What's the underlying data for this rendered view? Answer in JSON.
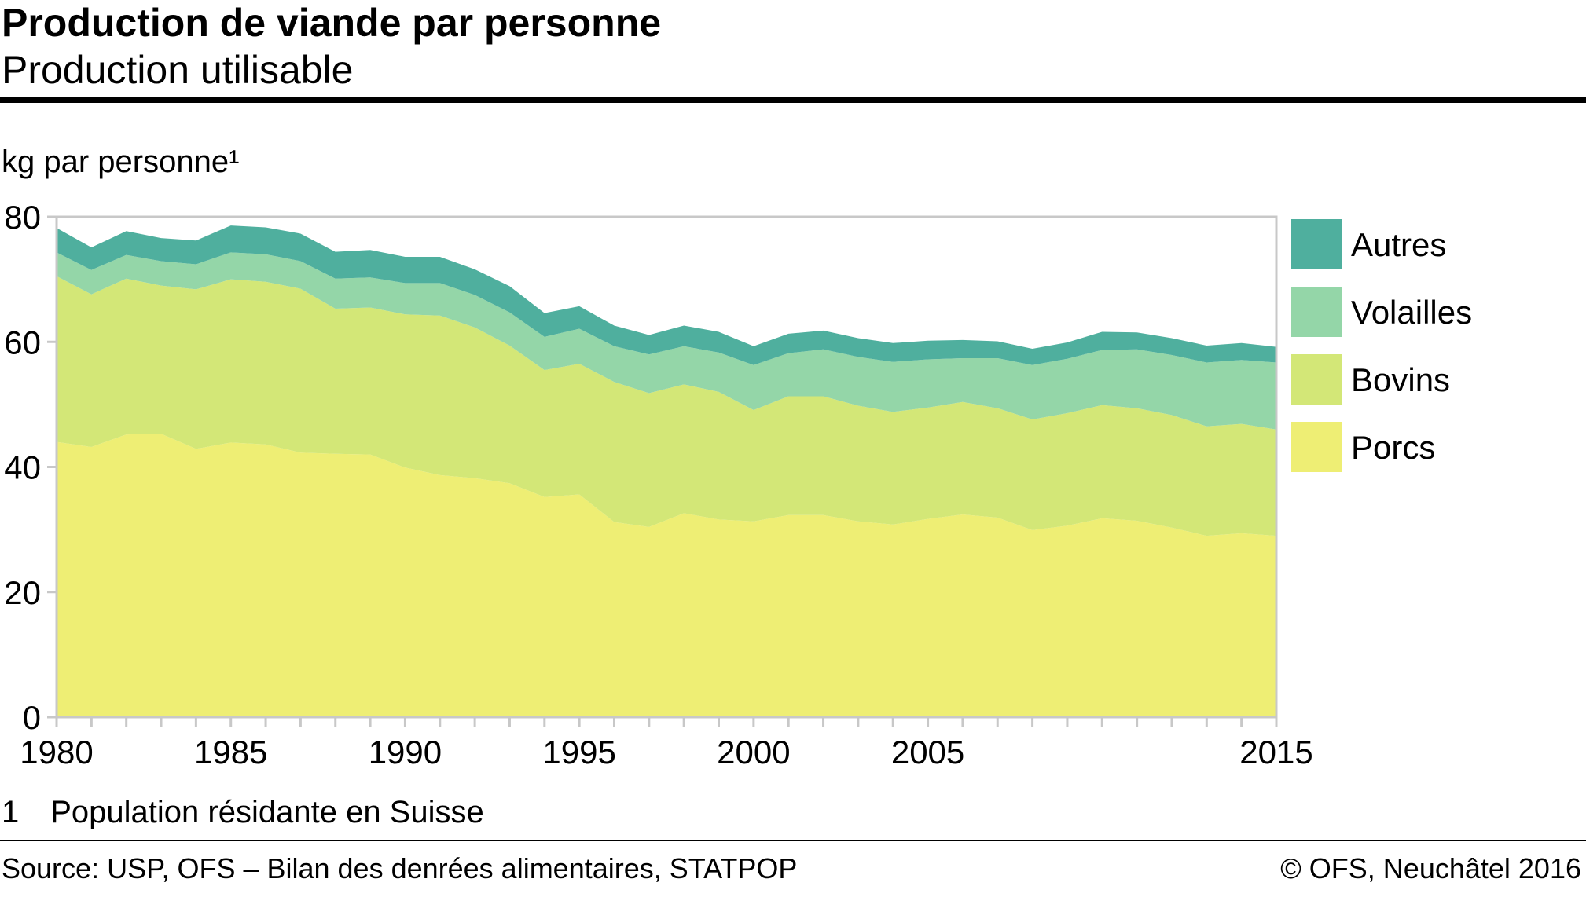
{
  "header": {
    "title": "Production de viande par personne",
    "subtitle": "Production utilisable"
  },
  "footer": {
    "footnote": "1 Population résidante en Suisse",
    "source": "Source: USP, OFS – Bilan des denrées alimentaires, STATPOP",
    "copyright": "© OFS, Neuchâtel 2016"
  },
  "chart_data": {
    "type": "area",
    "stacked": true,
    "ylabel": "kg par personne¹",
    "xlabel": "",
    "ylim": [
      0,
      80
    ],
    "xlim": [
      1980,
      2015
    ],
    "yticks": [
      0,
      20,
      40,
      60,
      80
    ],
    "xtick_labels": [
      1980,
      1985,
      1990,
      1995,
      2000,
      2005,
      2015
    ],
    "grid": false,
    "legend_position": "right",
    "x": [
      1980,
      1981,
      1982,
      1983,
      1984,
      1985,
      1986,
      1987,
      1988,
      1989,
      1990,
      1991,
      1992,
      1993,
      1994,
      1995,
      1996,
      1997,
      1998,
      1999,
      2000,
      2001,
      2002,
      2003,
      2004,
      2005,
      2006,
      2007,
      2008,
      2009,
      2010,
      2011,
      2012,
      2013,
      2014,
      2015
    ],
    "series": [
      {
        "name": "Porcs",
        "color": "#eeee74",
        "values": [
          44.0,
          43.2,
          45.2,
          45.3,
          42.9,
          43.9,
          43.6,
          42.3,
          42.1,
          42.0,
          39.9,
          38.7,
          38.2,
          37.4,
          35.2,
          35.6,
          31.2,
          30.4,
          32.6,
          31.6,
          31.3,
          32.3,
          32.3,
          31.3,
          30.8,
          31.7,
          32.4,
          31.9,
          29.9,
          30.6,
          31.8,
          31.4,
          30.3,
          29.0,
          29.4,
          29.0
        ]
      },
      {
        "name": "Bovins",
        "color": "#d3e777",
        "values": [
          26.5,
          24.4,
          24.9,
          23.7,
          25.5,
          26.1,
          26.0,
          26.2,
          23.2,
          23.5,
          24.5,
          25.5,
          24.1,
          22.0,
          20.3,
          20.9,
          22.4,
          21.4,
          20.6,
          20.4,
          17.8,
          19.0,
          19.0,
          18.5,
          18.0,
          17.8,
          18.0,
          17.5,
          17.7,
          18.0,
          18.1,
          18.0,
          18.0,
          17.5,
          17.5,
          17.0
        ]
      },
      {
        "name": "Volailles",
        "color": "#94d6a8",
        "values": [
          3.8,
          3.9,
          3.8,
          3.9,
          4.0,
          4.3,
          4.4,
          4.4,
          4.8,
          4.8,
          5.0,
          5.2,
          5.2,
          5.3,
          5.3,
          5.6,
          5.7,
          6.2,
          6.1,
          6.3,
          7.2,
          6.9,
          7.5,
          7.8,
          8.0,
          7.7,
          7.0,
          8.0,
          8.7,
          8.7,
          8.8,
          9.4,
          9.6,
          10.2,
          10.2,
          10.7
        ]
      },
      {
        "name": "Autres",
        "color": "#4faf9e",
        "values": [
          3.9,
          3.6,
          3.8,
          3.7,
          3.8,
          4.3,
          4.3,
          4.4,
          4.3,
          4.4,
          4.2,
          4.2,
          4.1,
          4.2,
          3.8,
          3.6,
          3.3,
          3.1,
          3.3,
          3.3,
          3.0,
          3.1,
          3.0,
          3.0,
          3.0,
          3.0,
          2.9,
          2.7,
          2.6,
          2.6,
          2.9,
          2.7,
          2.7,
          2.7,
          2.7,
          2.5
        ]
      }
    ]
  }
}
